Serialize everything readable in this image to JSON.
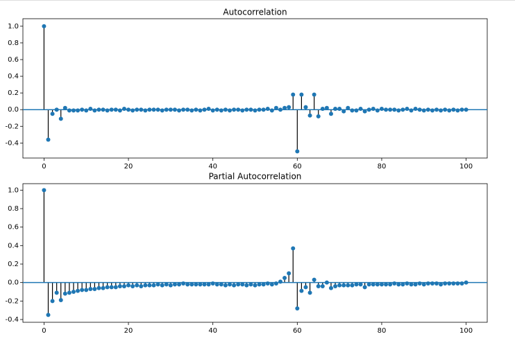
{
  "chart_data": [
    {
      "type": "stem",
      "title": "Autocorrelation",
      "color": "#1f77b4",
      "x": [
        0,
        1,
        2,
        3,
        4,
        5,
        6,
        7,
        8,
        9,
        10,
        11,
        12,
        13,
        14,
        15,
        16,
        17,
        18,
        19,
        20,
        21,
        22,
        23,
        24,
        25,
        26,
        27,
        28,
        29,
        30,
        31,
        32,
        33,
        34,
        35,
        36,
        37,
        38,
        39,
        40,
        41,
        42,
        43,
        44,
        45,
        46,
        47,
        48,
        49,
        50,
        51,
        52,
        53,
        54,
        55,
        56,
        57,
        58,
        59,
        60,
        61,
        62,
        63,
        64,
        65,
        66,
        67,
        68,
        69,
        70,
        71,
        72,
        73,
        74,
        75,
        76,
        77,
        78,
        79,
        80,
        81,
        82,
        83,
        84,
        85,
        86,
        87,
        88,
        89,
        90,
        91,
        92,
        93,
        94,
        95,
        96,
        97,
        98,
        99,
        100
      ],
      "values": [
        1,
        -0.36,
        -0.05,
        0.0,
        -0.11,
        0.02,
        -0.01,
        -0.01,
        -0.01,
        0.0,
        -0.01,
        0.01,
        -0.01,
        0.0,
        0.0,
        -0.01,
        0.0,
        0.0,
        -0.01,
        0.01,
        0.0,
        -0.01,
        0.0,
        0.0,
        -0.01,
        0.0,
        0.0,
        0.0,
        -0.01,
        0.0,
        0.0,
        0.0,
        -0.01,
        0.0,
        0.0,
        -0.01,
        0.0,
        -0.01,
        0.0,
        0.01,
        -0.01,
        0.0,
        -0.01,
        0.0,
        -0.01,
        0.0,
        0.0,
        -0.01,
        0.0,
        0.0,
        -0.01,
        0.0,
        0.0,
        0.01,
        -0.01,
        0.02,
        0.0,
        0.02,
        0.03,
        0.18,
        -0.5,
        0.18,
        0.03,
        -0.07,
        0.18,
        -0.08,
        0.01,
        0.02,
        -0.05,
        0.01,
        0.01,
        -0.02,
        0.02,
        -0.01,
        -0.01,
        0.01,
        -0.02,
        0.0,
        0.01,
        -0.01,
        0.01,
        0.0,
        0.0,
        0.0,
        -0.01,
        0.0,
        0.01,
        -0.01,
        0.01,
        0.0,
        -0.01,
        0.0,
        -0.01,
        0.0,
        -0.01,
        0.0,
        -0.01,
        0.0,
        -0.01,
        0.0,
        0.0
      ],
      "xlim": [
        -5,
        105
      ],
      "xticks": [
        0,
        20,
        40,
        60,
        80,
        100
      ],
      "ylim": [
        -0.58,
        1.09
      ],
      "yticks": [
        -0.4,
        -0.2,
        {
          "value": 0,
          "label": "0.0"
        },
        0.2,
        0.4,
        0.6,
        0.8,
        {
          "value": 1,
          "label": "1.0"
        }
      ]
    },
    {
      "type": "stem",
      "title": "Partial Autocorrelation",
      "color": "#1f77b4",
      "x": [
        0,
        1,
        2,
        3,
        4,
        5,
        6,
        7,
        8,
        9,
        10,
        11,
        12,
        13,
        14,
        15,
        16,
        17,
        18,
        19,
        20,
        21,
        22,
        23,
        24,
        25,
        26,
        27,
        28,
        29,
        30,
        31,
        32,
        33,
        34,
        35,
        36,
        37,
        38,
        39,
        40,
        41,
        42,
        43,
        44,
        45,
        46,
        47,
        48,
        49,
        50,
        51,
        52,
        53,
        54,
        55,
        56,
        57,
        58,
        59,
        60,
        61,
        62,
        63,
        64,
        65,
        66,
        67,
        68,
        69,
        70,
        71,
        72,
        73,
        74,
        75,
        76,
        77,
        78,
        79,
        80,
        81,
        82,
        83,
        84,
        85,
        86,
        87,
        88,
        89,
        90,
        91,
        92,
        93,
        94,
        95,
        96,
        97,
        98,
        99,
        100
      ],
      "values": [
        1,
        -0.35,
        -0.2,
        -0.11,
        -0.19,
        -0.12,
        -0.11,
        -0.1,
        -0.09,
        -0.08,
        -0.08,
        -0.07,
        -0.07,
        -0.06,
        -0.06,
        -0.05,
        -0.05,
        -0.05,
        -0.04,
        -0.04,
        -0.03,
        -0.04,
        -0.03,
        -0.04,
        -0.03,
        -0.03,
        -0.03,
        -0.02,
        -0.03,
        -0.02,
        -0.03,
        -0.02,
        -0.02,
        -0.01,
        -0.02,
        -0.02,
        -0.02,
        -0.02,
        -0.02,
        -0.02,
        -0.01,
        -0.02,
        -0.02,
        -0.03,
        -0.02,
        -0.03,
        -0.02,
        -0.02,
        -0.03,
        -0.02,
        -0.03,
        -0.02,
        -0.02,
        -0.01,
        -0.02,
        -0.01,
        0.01,
        0.05,
        0.1,
        0.37,
        -0.28,
        -0.09,
        -0.05,
        -0.11,
        0.03,
        -0.04,
        -0.04,
        0.0,
        -0.06,
        -0.04,
        -0.03,
        -0.03,
        -0.03,
        -0.03,
        -0.02,
        -0.02,
        -0.05,
        -0.02,
        -0.02,
        -0.02,
        -0.02,
        -0.02,
        -0.02,
        -0.01,
        -0.02,
        -0.02,
        -0.01,
        -0.02,
        -0.02,
        -0.01,
        -0.02,
        -0.01,
        -0.01,
        -0.01,
        -0.02,
        -0.01,
        -0.01,
        -0.01,
        -0.01,
        -0.01,
        0.0
      ],
      "xlim": [
        -5,
        105
      ],
      "xticks": [
        0,
        20,
        40,
        60,
        80,
        100
      ],
      "ylim": [
        -0.43,
        1.07
      ],
      "yticks": [
        -0.4,
        -0.2,
        {
          "value": 0,
          "label": "0.0"
        },
        0.2,
        0.4,
        0.6,
        0.8,
        {
          "value": 1,
          "label": "1.0"
        }
      ]
    }
  ]
}
